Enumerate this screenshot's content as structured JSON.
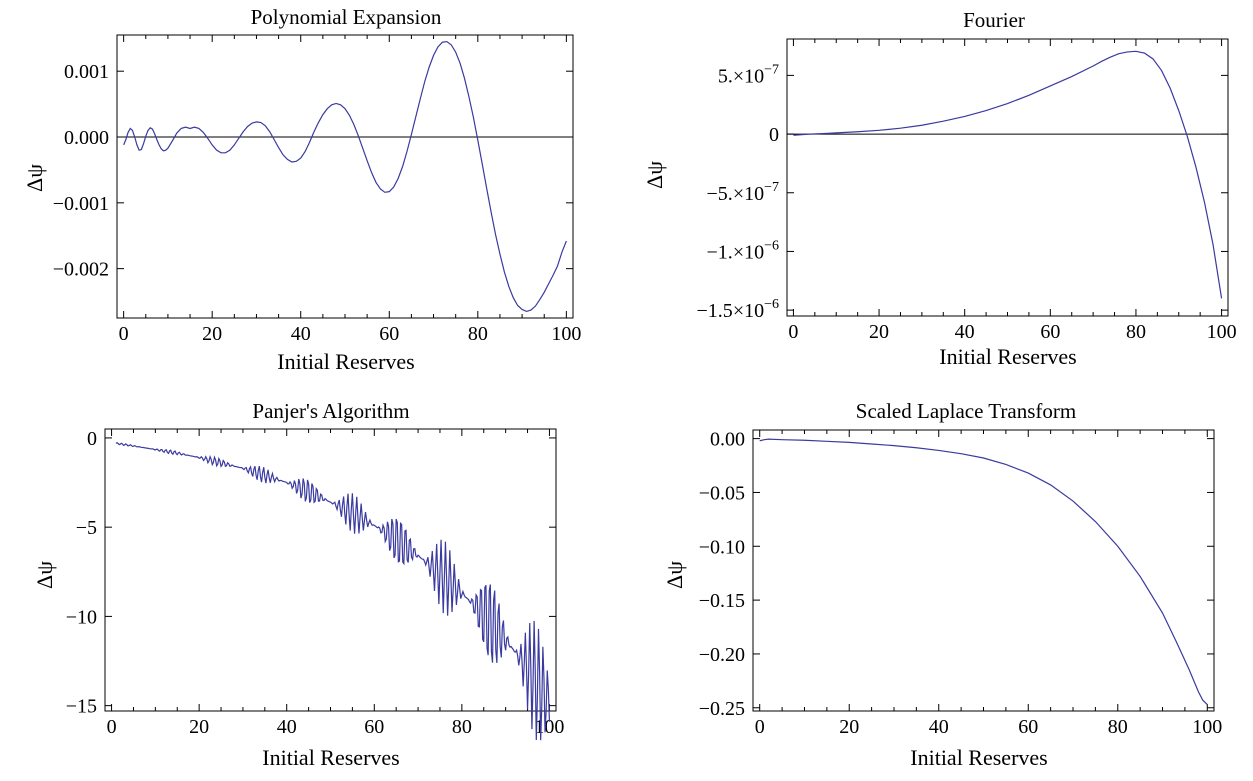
{
  "chart_data": [
    {
      "type": "line",
      "title": "Polynomial Expansion",
      "xlabel": "Initial Reserves",
      "ylabel": "Δψ",
      "xlim": [
        -1.5,
        101.5
      ],
      "ylim": [
        -0.00275,
        0.00155
      ],
      "xticks": [
        0,
        20,
        40,
        60,
        80,
        100
      ],
      "xtick_labels": [
        "0",
        "20",
        "40",
        "60",
        "80",
        "100"
      ],
      "yticks": [
        -0.002,
        -0.001,
        0.0,
        0.001
      ],
      "ytick_labels": [
        "−0.002",
        "−0.001",
        "0.000",
        "0.001"
      ],
      "zero_line": true,
      "color": "#3a3aa0",
      "series": [
        {
          "x": [
            0,
            0.5,
            1,
            1.5,
            2,
            2.5,
            3,
            3.5,
            4,
            4.5,
            5,
            5.5,
            6,
            6.5,
            7,
            7.5,
            8,
            8.5,
            9,
            9.5,
            10,
            11,
            12,
            13,
            14,
            15,
            16,
            17,
            18,
            19,
            20,
            21,
            22,
            23,
            24,
            25,
            26,
            27,
            28,
            29,
            30,
            31,
            32,
            33,
            34,
            35,
            36,
            37,
            38,
            39,
            40,
            41,
            42,
            43,
            44,
            45,
            46,
            47,
            48,
            49,
            50,
            51,
            52,
            53,
            54,
            55,
            56,
            57,
            58,
            59,
            60,
            61,
            62,
            63,
            64,
            65,
            66,
            67,
            68,
            69,
            70,
            71,
            72,
            73,
            74,
            75,
            76,
            77,
            78,
            79,
            80,
            81,
            82,
            83,
            84,
            85,
            86,
            87,
            88,
            89,
            90,
            91,
            92,
            93,
            94,
            95,
            96,
            97,
            98,
            99,
            100
          ],
          "y": [
            -0.00012,
            -4e-05,
            7e-05,
            0.00013,
            0.0001,
            0.0,
            -0.00012,
            -0.0002,
            -0.00019,
            -0.0001,
            1e-05,
            0.0001,
            0.00014,
            0.00012,
            5e-05,
            -4e-05,
            -0.00012,
            -0.00018,
            -0.00021,
            -0.0002,
            -0.00017,
            -6e-05,
            6e-05,
            0.00013,
            0.00015,
            0.00013,
            0.00015,
            0.00013,
            7e-05,
            -2e-05,
            -0.00012,
            -0.0002,
            -0.00024,
            -0.00024,
            -0.0002,
            -0.00012,
            -2e-05,
            8e-05,
            0.00016,
            0.00021,
            0.00023,
            0.00022,
            0.00017,
            8e-05,
            -4e-05,
            -0.00016,
            -0.00027,
            -0.00034,
            -0.00038,
            -0.00037,
            -0.00032,
            -0.00022,
            -8e-05,
            8e-05,
            0.00022,
            0.00034,
            0.00043,
            0.00049,
            0.00051,
            0.00049,
            0.00043,
            0.00033,
            0.00019,
            2e-05,
            -0.00017,
            -0.00036,
            -0.00054,
            -0.00069,
            -0.00079,
            -0.00084,
            -0.00083,
            -0.00076,
            -0.00063,
            -0.00045,
            -0.00022,
            4e-05,
            0.00031,
            0.00058,
            0.00084,
            0.00106,
            0.00124,
            0.00137,
            0.00144,
            0.00145,
            0.0014,
            0.00129,
            0.00112,
            0.00089,
            0.00061,
            0.0003,
            -5e-05,
            -0.00041,
            -0.00078,
            -0.00114,
            -0.00148,
            -0.00178,
            -0.00205,
            -0.00227,
            -0.00244,
            -0.00256,
            -0.00262,
            -0.00265,
            -0.00263,
            -0.00257,
            -0.00247,
            -0.00236,
            -0.00223,
            -0.0021,
            -0.00196,
            -0.00175,
            -0.00158
          ]
        }
      ]
    },
    {
      "type": "line",
      "title": "Fourier",
      "xlabel": "Initial Reserves",
      "ylabel": "Δψ",
      "xlim": [
        -1.5,
        101.5
      ],
      "ylim": [
        -1.55e-06,
        8.1e-07
      ],
      "xticks": [
        0,
        20,
        40,
        60,
        80,
        100
      ],
      "xtick_labels": [
        "0",
        "20",
        "40",
        "60",
        "80",
        "100"
      ],
      "yticks": [
        -1.5e-06,
        -1e-06,
        -5e-07,
        0,
        5e-07
      ],
      "ytick_labels": [
        {
          "mantissa": "−1.5",
          "exp": "−6"
        },
        {
          "mantissa": "−1.",
          "exp": "−6"
        },
        {
          "mantissa": "−5.",
          "exp": "−7"
        },
        {
          "mantissa": "0",
          "exp": ""
        },
        {
          "mantissa": "5.",
          "exp": "−7"
        }
      ],
      "zero_line": true,
      "color": "#3a3aa0",
      "series": [
        {
          "x": [
            0,
            2,
            4,
            6,
            8,
            10,
            15,
            20,
            25,
            30,
            35,
            40,
            45,
            50,
            55,
            60,
            65,
            70,
            72,
            74,
            76,
            78,
            80,
            82,
            84,
            86,
            88,
            90,
            92,
            94,
            96,
            98,
            100
          ],
          "y": [
            -1e-08,
            -5e-09,
            0,
            3e-09,
            6e-09,
            1e-08,
            2e-08,
            3.2e-08,
            5e-08,
            7.5e-08,
            1.1e-07,
            1.5e-07,
            2e-07,
            2.6e-07,
            3.3e-07,
            4.1e-07,
            4.9e-07,
            5.8e-07,
            6.2e-07,
            6.55e-07,
            6.85e-07,
            7e-07,
            7.05e-07,
            6.9e-07,
            6.4e-07,
            5.4e-07,
            3.9e-07,
            2e-07,
            -2e-08,
            -2.8e-07,
            -5.8e-07,
            -9.4e-07,
            -1.4e-06
          ]
        }
      ]
    },
    {
      "type": "line",
      "title": "Panjer's Algorithm",
      "xlabel": "Initial Reserves",
      "ylabel": "Δψ",
      "xlim": [
        -1.5,
        101.5
      ],
      "ylim": [
        -15.3,
        0.5
      ],
      "xticks": [
        0,
        20,
        40,
        60,
        80,
        100
      ],
      "xtick_labels": [
        "0",
        "20",
        "40",
        "60",
        "80",
        "100"
      ],
      "yticks": [
        -15,
        -10,
        -5,
        0
      ],
      "ytick_labels": [
        "−15",
        "−10",
        "−5",
        "0"
      ],
      "zero_line": false,
      "color": "#3a3aa0",
      "series": [
        {
          "x": [
            1,
            5,
            10,
            15,
            20,
            25,
            30,
            35,
            40,
            45,
            50,
            55,
            60,
            65,
            70,
            75,
            80,
            85,
            90,
            95,
            100
          ],
          "y": [
            -0.3,
            -0.45,
            -0.65,
            -0.85,
            -1.1,
            -1.4,
            -1.7,
            -2.1,
            -2.5,
            -3.0,
            -3.6,
            -4.2,
            -4.9,
            -5.7,
            -6.6,
            -7.6,
            -8.7,
            -9.9,
            -11.3,
            -12.9,
            -14.8
          ]
        }
      ]
    },
    {
      "type": "line",
      "title": "Scaled Laplace Transform",
      "xlabel": "Initial Reserves",
      "ylabel": "Δψ",
      "xlim": [
        -1.5,
        101.5
      ],
      "ylim": [
        -0.253,
        0.008
      ],
      "xticks": [
        0,
        20,
        40,
        60,
        80,
        100
      ],
      "xtick_labels": [
        "0",
        "20",
        "40",
        "60",
        "80",
        "100"
      ],
      "yticks": [
        -0.25,
        -0.2,
        -0.15,
        -0.1,
        -0.05,
        0.0
      ],
      "ytick_labels": [
        "−0.25",
        "−0.20",
        "−0.15",
        "−0.10",
        "−0.05",
        "0.00"
      ],
      "zero_line": false,
      "color": "#3a3aa0",
      "series": [
        {
          "x": [
            0,
            1,
            2,
            5,
            10,
            15,
            20,
            25,
            30,
            35,
            40,
            45,
            50,
            55,
            60,
            65,
            70,
            75,
            80,
            85,
            90,
            93,
            96,
            98,
            99,
            100
          ],
          "y": [
            -0.002,
            -0.001,
            -0.0005,
            -0.001,
            -0.0015,
            -0.0025,
            -0.0035,
            -0.005,
            -0.0065,
            -0.0085,
            -0.011,
            -0.014,
            -0.018,
            -0.024,
            -0.032,
            -0.043,
            -0.058,
            -0.077,
            -0.1,
            -0.128,
            -0.162,
            -0.188,
            -0.215,
            -0.235,
            -0.243,
            -0.247
          ]
        }
      ]
    }
  ]
}
